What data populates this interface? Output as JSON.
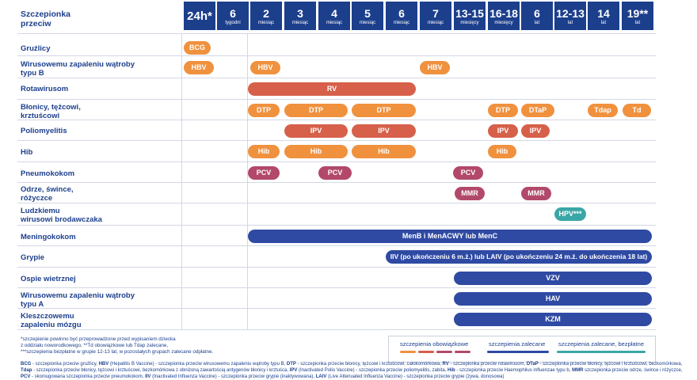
{
  "header": {
    "title_line1": "Szczepionka",
    "title_line2": "przeciw",
    "ages": [
      {
        "n": "24h*",
        "u": ""
      },
      {
        "n": "6",
        "u": "tygodni"
      },
      {
        "n": "2",
        "u": "miesiąc"
      },
      {
        "n": "3",
        "u": "miesiąc"
      },
      {
        "n": "4",
        "u": "miesiąc"
      },
      {
        "n": "5",
        "u": "miesiąc"
      },
      {
        "n": "6",
        "u": "miesiąc"
      },
      {
        "n": "7",
        "u": "miesiąc"
      },
      {
        "n": "13-15",
        "u": "miesięcy"
      },
      {
        "n": "16-18",
        "u": "miesięcy"
      },
      {
        "n": "6",
        "u": "lat"
      },
      {
        "n": "12-13",
        "u": "lat"
      },
      {
        "n": "14",
        "u": "lat"
      },
      {
        "n": "19**",
        "u": "lat"
      }
    ]
  },
  "rows": [
    {
      "line1": "Gruźlicy",
      "line2": ""
    },
    {
      "line1": "Wirusowemu zapaleniu wątroby",
      "line2": "typu B"
    },
    {
      "line1": "Rotawirusom",
      "line2": ""
    },
    {
      "line1": "Błonicy, tężcowi,",
      "line2": "krztuścowi"
    },
    {
      "line1": "Poliomyelitis",
      "line2": ""
    },
    {
      "line1": "Hib",
      "line2": ""
    },
    {
      "line1": "Pneumokokom",
      "line2": ""
    },
    {
      "line1": "Odrze, śwince,",
      "line2": "różyczce"
    },
    {
      "line1": "Ludzkiemu",
      "line2": "wirusowi brodawczaka"
    },
    {
      "line1": "Meningokokom",
      "line2": ""
    },
    {
      "line1": "Grypie",
      "line2": ""
    },
    {
      "line1": "Ospie wietrznej",
      "line2": ""
    },
    {
      "line1": "Wirusowemu zapaleniu wątroby",
      "line2": "typu A"
    },
    {
      "line1": "Kleszczowemu",
      "line2": "zapaleniu mózgu"
    }
  ],
  "pills": {
    "bcg": "BCG",
    "hbv": "HBV",
    "rv": "RV",
    "dtp": "DTP",
    "dtap": "DTaP",
    "tdap": "Tdap",
    "td": "Td",
    "ipv": "IPV",
    "hib": "Hib",
    "pcv": "PCV",
    "mmr": "MMR",
    "hpv": "HPV***",
    "men": "MenB i MenACWY lub MenC",
    "flu": "IIV (po ukończeniu 6 m.ż.) lub LAIV (po ukończeniu 24 m.ż. do ukończenia 18 lat)",
    "vzv": "VZV",
    "hav": "HAV",
    "kzm": "KZM"
  },
  "colors": {
    "orange": "#f0913e",
    "red": "#d6604a",
    "mauve": "#b2496a",
    "navy": "#2f4aa3",
    "teal": "#3ba6a6",
    "header": "#1c3f8c"
  },
  "footnotes": {
    "line1": "*szczepienie powinno być przeprowadzone przed wypisaniem dziecka",
    "line2": "z oddziału noworodkowego, **Td obowiązkowe lub Tdap zalecane,",
    "line3": "***szczepienia bezpłatne w grupie 12-13 lat, w pozostałych grupach zalecane odpłatne."
  },
  "legend": {
    "mandatory": "szczepienia obowiązkowe",
    "recommended": "szczepienia zalecane",
    "free": "szczepienia zalecane, bezpłatne"
  },
  "abbreviations": [
    {
      "k": "BCG",
      "v": " - szczepionka przeciw gruźlicy, "
    },
    {
      "k": "HBV",
      "v": " (Hepatitis B Vaccine) - szczepionka przeciw wirusowemu zapaleniu wątroby typu B, "
    },
    {
      "k": "DTP",
      "v": " - szczepionka przeciw błonicy, tężcowi i krztuścowi, całokomórkowa, "
    },
    {
      "k": "RV",
      "v": " - szczepionka przeciw rotawirusom, "
    },
    {
      "k": "DTaP",
      "v": " - szczepionka przeciw błonicy, tężcowi i krztuścowi, bezkomórkowa, "
    },
    {
      "k": "Tdap",
      "v": " - szczepionka przeciw błonicy, tężcowi i krztuścowi, bezkomórkowa z obniżoną zawartością antygenów błonicy i krztuśca, "
    },
    {
      "k": "IPV",
      "v": " (Inactivated Polio Vaccine) - szczepionka przeciw poliomyelitis, zabita, "
    },
    {
      "k": "Hib",
      "v": " - szczepionka przeciw Haemophilus influenzae typu b, "
    },
    {
      "k": "MMR",
      "v": " szczepionka przeciw odrze, śwince i różyczce, "
    },
    {
      "k": "PCV",
      "v": " - skoniugowana szczepionka przeciw pneumokokom, "
    },
    {
      "k": "IIV",
      "v": " (Inactivated Influenza Vaccine) - szczepionka przeciw grypie (inaktywowana), "
    },
    {
      "k": "LAIV",
      "v": " (Live Attenuated Influenza Vaccine) - szczepionka przeciw grypie (żywa, donosowa)"
    }
  ]
}
